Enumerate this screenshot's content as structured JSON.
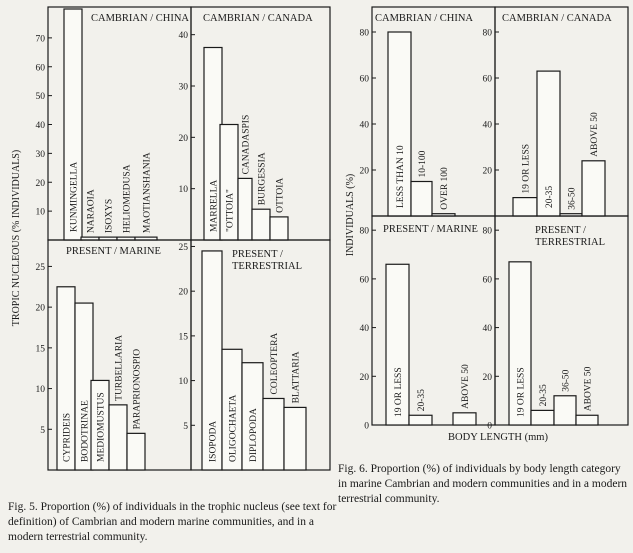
{
  "chart_data": [
    {
      "type": "bar",
      "figure": "fig5",
      "title": "CAMBRIAN / CHINA",
      "categories": [
        "KUNMINGELLA",
        "NARAOIA",
        "ISOXYS",
        "HELIOMEDUSA",
        "MAOTIANSHANIA"
      ],
      "values": [
        80,
        1,
        1,
        1,
        1
      ],
      "yticks": [
        10,
        20,
        30,
        40,
        50,
        60,
        70
      ],
      "ylim": [
        0,
        80
      ],
      "ylabel": "TROPIC NUCLEOUS (% INDIVIDUALS)",
      "xlabel": ""
    },
    {
      "type": "bar",
      "figure": "fig5",
      "title": "CAMBRIAN / CANADA",
      "categories": [
        "MARRELLA",
        "\"OTTOIA\"",
        "CANADASPIS",
        "BURGESSIA",
        "OTTOIA"
      ],
      "values": [
        37.5,
        22.5,
        12,
        6,
        4.5
      ],
      "yticks": [
        10,
        20,
        30,
        40
      ],
      "ylim": [
        0,
        45
      ]
    },
    {
      "type": "bar",
      "figure": "fig5",
      "title": "PRESENT / MARINE",
      "categories": [
        "CYPRIDEIS",
        "BODOTRINAE",
        "MEDIOMUSTUS",
        "TURBELLARIA",
        "PARAPRIONOSPIO"
      ],
      "values": [
        22.5,
        20.5,
        11,
        8,
        4.5
      ],
      "yticks": [
        5,
        10,
        15,
        20,
        25
      ],
      "ylim": [
        0,
        28
      ]
    },
    {
      "type": "bar",
      "figure": "fig5",
      "title": "PRESENT / TERRESTRIAL",
      "categories": [
        "ISOPODA",
        "OLIGOCHAETA",
        "DIPLOPODA",
        "COLEOPTERA",
        "BLATTARIA"
      ],
      "values": [
        24.5,
        13.5,
        12,
        8,
        7
      ],
      "yticks": [
        5,
        10,
        15,
        20,
        25
      ],
      "ylim": [
        0,
        25.5
      ]
    },
    {
      "type": "bar",
      "figure": "fig6",
      "title": "CAMBRIAN / CHINA",
      "categories": [
        "LESS THAN 10",
        "10-100",
        "OVER 100"
      ],
      "values": [
        80,
        15,
        1
      ],
      "yticks": [
        20,
        40,
        60,
        80
      ],
      "ylim": [
        0,
        90
      ],
      "ylabel": "INDIVIDUALS (%)"
    },
    {
      "type": "bar",
      "figure": "fig6",
      "title": "CAMBRIAN / CANADA",
      "categories": [
        "19 OR LESS",
        "20-35",
        "36-50",
        "ABOVE 50"
      ],
      "values": [
        8,
        63,
        1,
        24
      ],
      "yticks": [
        20,
        40,
        60,
        80
      ],
      "ylim": [
        0,
        90
      ]
    },
    {
      "type": "bar",
      "figure": "fig6",
      "title": "PRESENT / MARINE",
      "categories": [
        "19 OR LESS",
        "20-35",
        "ABOVE 50"
      ],
      "values": [
        66,
        4,
        5
      ],
      "yticks": [
        0,
        20,
        40,
        60,
        80
      ],
      "ylim": [
        0,
        85
      ]
    },
    {
      "type": "bar",
      "figure": "fig6",
      "title": "PRESENT / TERRESTRIAL",
      "categories": [
        "19 OR LESS",
        "20-35",
        "36-50",
        "ABOVE 50"
      ],
      "values": [
        67,
        6,
        12,
        4
      ],
      "yticks": [
        0,
        20,
        40,
        60,
        80
      ],
      "ylim": [
        0,
        85
      ],
      "xlabel": "BODY LENGTH (mm)"
    }
  ],
  "captions": {
    "fig5": "Fig. 5. Proportion (%) of individuals in the trophic nucleus (see text for definition) of Cambrian and modern marine communities, and in a modern terrestrial community.",
    "fig6": "Fig. 6. Proportion (%) of individuals by body length category in marine Cambrian and modern communities and in a modern terrestrial community."
  },
  "colors": {
    "ink": "#1a1a1a",
    "paper": "#f2f1ec",
    "bar_fill": "#fafaf6"
  }
}
